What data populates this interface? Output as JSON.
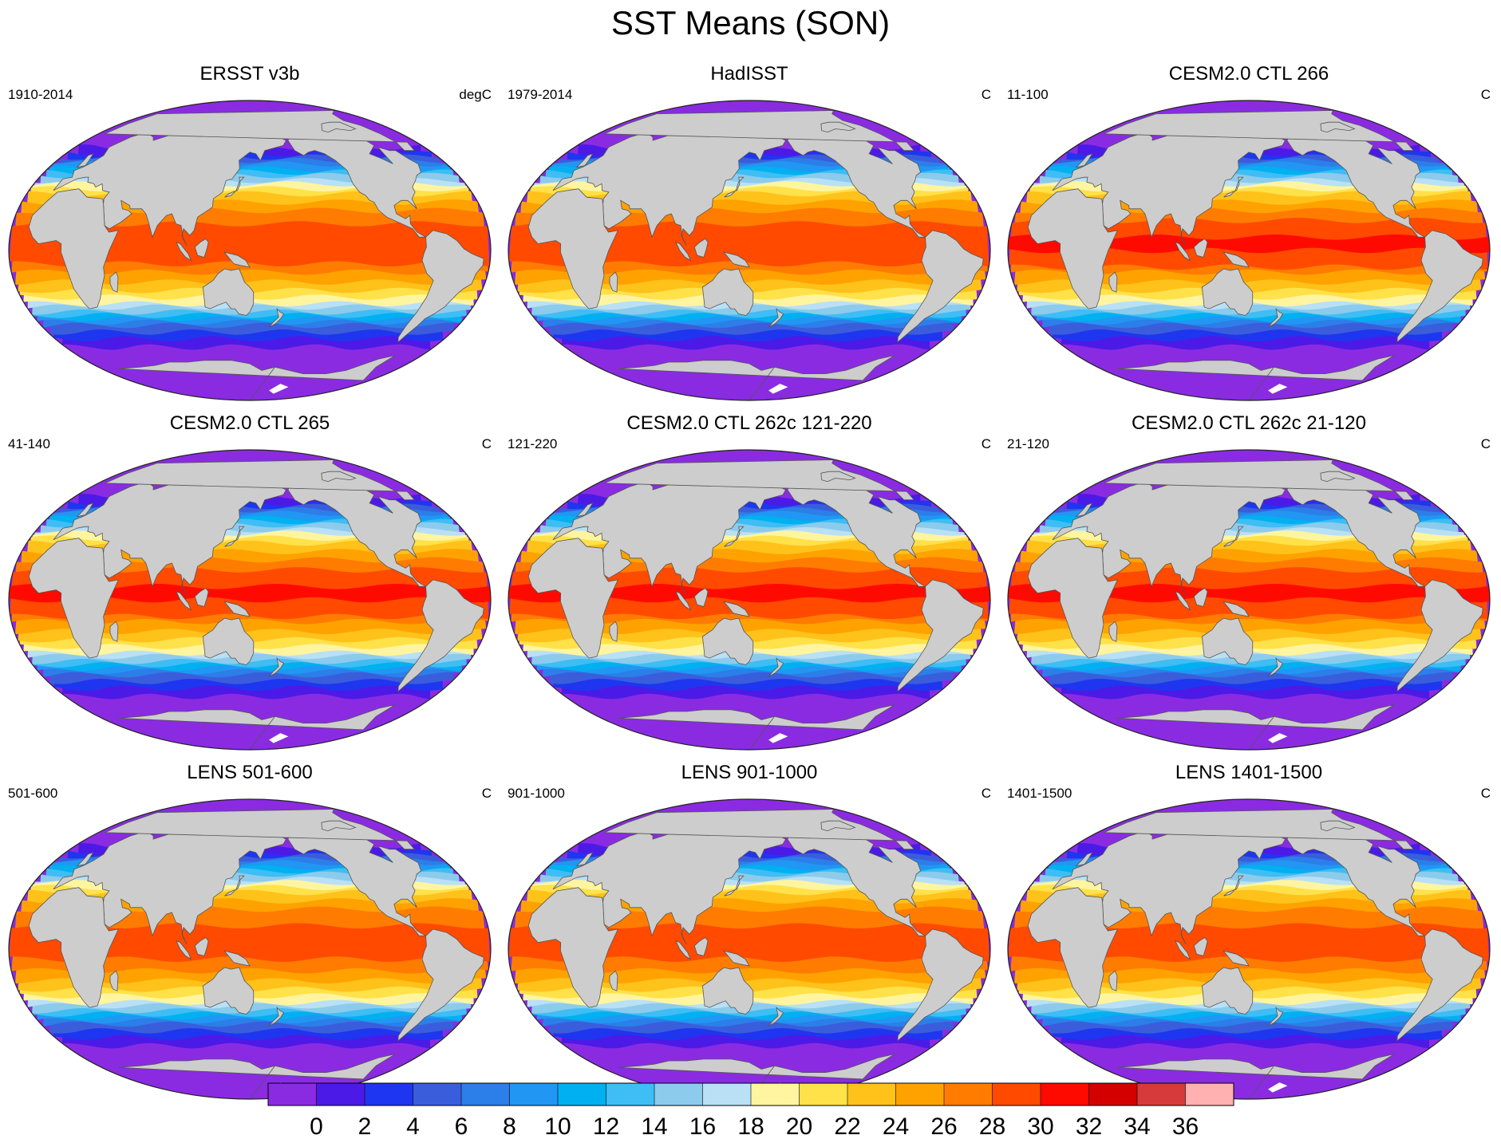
{
  "title": "SST Means (SON)",
  "panels": [
    {
      "title": "ERSST v3b",
      "left": "1910-2014",
      "right": "degC",
      "variant": "obs_coarse"
    },
    {
      "title": "HadISST",
      "left": "1979-2014",
      "right": "C",
      "variant": "obs"
    },
    {
      "title": "CESM2.0 CTL 266",
      "left": "11-100",
      "right": "C",
      "variant": "cesm"
    },
    {
      "title": "CESM2.0 CTL 265",
      "left": "41-140",
      "right": "C",
      "variant": "cesm"
    },
    {
      "title": "CESM2.0 CTL 262c 121-220",
      "left": "121-220",
      "right": "C",
      "variant": "cesm"
    },
    {
      "title": "CESM2.0 CTL 262c 21-120",
      "left": "21-120",
      "right": "C",
      "variant": "cesm"
    },
    {
      "title": "LENS 501-600",
      "left": "501-600",
      "right": "C",
      "variant": "lens"
    },
    {
      "title": "LENS 901-1000",
      "left": "901-1000",
      "right": "C",
      "variant": "lens"
    },
    {
      "title": "LENS 1401-1500",
      "left": "1401-1500",
      "right": "C",
      "variant": "lens"
    }
  ],
  "colorbar": {
    "labels": [
      "0",
      "2",
      "4",
      "6",
      "8",
      "10",
      "12",
      "14",
      "16",
      "18",
      "20",
      "22",
      "24",
      "26",
      "28",
      "30",
      "32",
      "34",
      "36"
    ],
    "colors": [
      "#8a2be2",
      "#4c1ae6",
      "#1e36f0",
      "#3a5ddc",
      "#2c7ee8",
      "#2196f3",
      "#00b0f0",
      "#3fbdf5",
      "#8ccbeb",
      "#b9e0f5",
      "#fff5a0",
      "#ffe14a",
      "#ffc21a",
      "#ffa200",
      "#ff7c00",
      "#ff4a00",
      "#ff0a00",
      "#d40000",
      "#d63a3a",
      "#ffb0b0"
    ]
  },
  "colors": {
    "land": "#cdcdcd",
    "coast": "#555555",
    "antarctic_ice": "#ffffff"
  }
}
